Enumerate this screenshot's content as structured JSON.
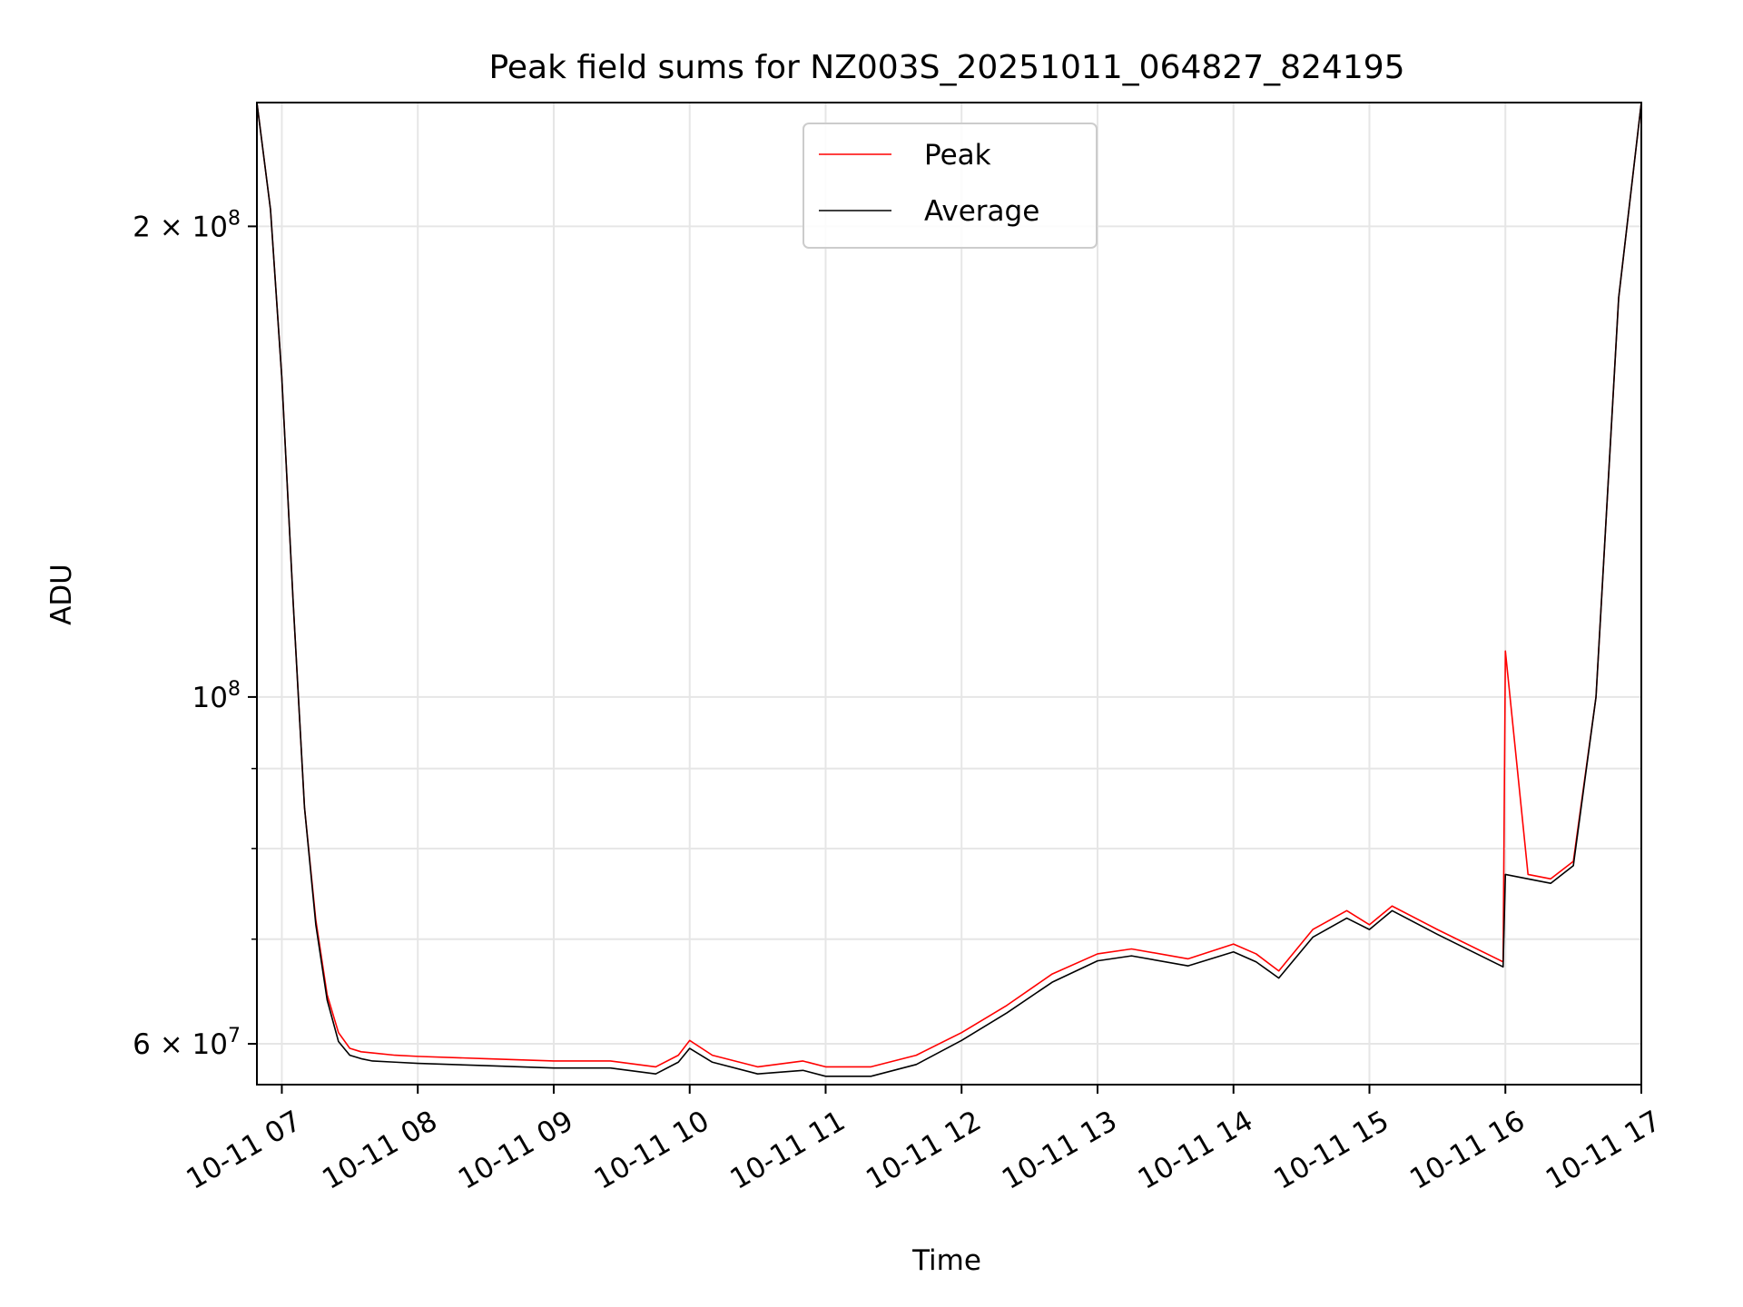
{
  "chart_data": {
    "type": "line",
    "title": "Peak field sums for NZ003S_20251011_064827_824195",
    "xlabel": "Time",
    "ylabel": "ADU",
    "yscale": "log",
    "xlim": [
      "2025-10-11 06:49",
      "2025-10-11 17:00"
    ],
    "ylim": [
      56500000,
      240000000
    ],
    "grid": true,
    "legend_position": "upper center",
    "x_ticks": [
      "10-11 07",
      "10-11 08",
      "10-11 09",
      "10-11 10",
      "10-11 11",
      "10-11 12",
      "10-11 13",
      "10-11 14",
      "10-11 15",
      "10-11 16",
      "10-11 17"
    ],
    "y_ticks": [
      {
        "value": 200000000,
        "mantissa": "2",
        "exponent": "8"
      },
      {
        "value": 100000000,
        "mantissa": "",
        "exponent": "8"
      },
      {
        "value": 60000000,
        "mantissa": "6",
        "exponent": "7"
      }
    ],
    "y_minor_ticks": [
      70000000,
      80000000,
      90000000
    ],
    "x": [
      "2025-10-11 06:49",
      "2025-10-11 06:55",
      "2025-10-11 07:00",
      "2025-10-11 07:05",
      "2025-10-11 07:10",
      "2025-10-11 07:15",
      "2025-10-11 07:20",
      "2025-10-11 07:25",
      "2025-10-11 07:30",
      "2025-10-11 07:35",
      "2025-10-11 07:40",
      "2025-10-11 07:50",
      "2025-10-11 08:00",
      "2025-10-11 08:30",
      "2025-10-11 09:00",
      "2025-10-11 09:25",
      "2025-10-11 09:45",
      "2025-10-11 09:55",
      "2025-10-11 10:00",
      "2025-10-11 10:10",
      "2025-10-11 10:30",
      "2025-10-11 10:50",
      "2025-10-11 11:00",
      "2025-10-11 11:20",
      "2025-10-11 11:40",
      "2025-10-11 12:00",
      "2025-10-11 12:20",
      "2025-10-11 12:40",
      "2025-10-11 13:00",
      "2025-10-11 13:15",
      "2025-10-11 13:40",
      "2025-10-11 14:00",
      "2025-10-11 14:10",
      "2025-10-11 14:20",
      "2025-10-11 14:35",
      "2025-10-11 14:50",
      "2025-10-11 15:00",
      "2025-10-11 15:10",
      "2025-10-11 15:30",
      "2025-10-11 15:59",
      "2025-10-11 16:00",
      "2025-10-11 16:10",
      "2025-10-11 16:20",
      "2025-10-11 16:30",
      "2025-10-11 16:40",
      "2025-10-11 16:50",
      "2025-10-11 17:00"
    ],
    "series": [
      {
        "name": "Peak",
        "color": "#ff0000",
        "values": [
          240000000,
          205000000,
          160000000,
          115000000,
          85000000,
          72000000,
          64500000,
          61000000,
          59600000,
          59300000,
          59200000,
          59000000,
          58900000,
          58700000,
          58500000,
          58500000,
          58000000,
          59000000,
          60300000,
          59000000,
          58000000,
          58500000,
          58000000,
          58000000,
          59000000,
          61000000,
          63500000,
          66500000,
          68500000,
          69000000,
          68000000,
          69500000,
          68500000,
          66800000,
          71000000,
          73000000,
          71500000,
          73500000,
          71000000,
          67700000,
          107000000,
          77000000,
          76500000,
          78500000,
          100000000,
          180000000,
          240000000
        ]
      },
      {
        "name": "Average",
        "color": "#000000",
        "values": [
          240000000,
          205000000,
          160000000,
          115000000,
          85000000,
          71500000,
          64000000,
          60200000,
          59000000,
          58700000,
          58500000,
          58400000,
          58300000,
          58100000,
          57900000,
          57900000,
          57400000,
          58400000,
          59600000,
          58400000,
          57400000,
          57700000,
          57200000,
          57200000,
          58200000,
          60300000,
          62800000,
          65700000,
          67800000,
          68300000,
          67300000,
          68700000,
          67700000,
          66100000,
          70200000,
          72200000,
          71000000,
          73000000,
          70500000,
          67200000,
          77000000,
          76500000,
          76000000,
          78000000,
          100000000,
          180000000,
          240000000
        ]
      }
    ]
  }
}
